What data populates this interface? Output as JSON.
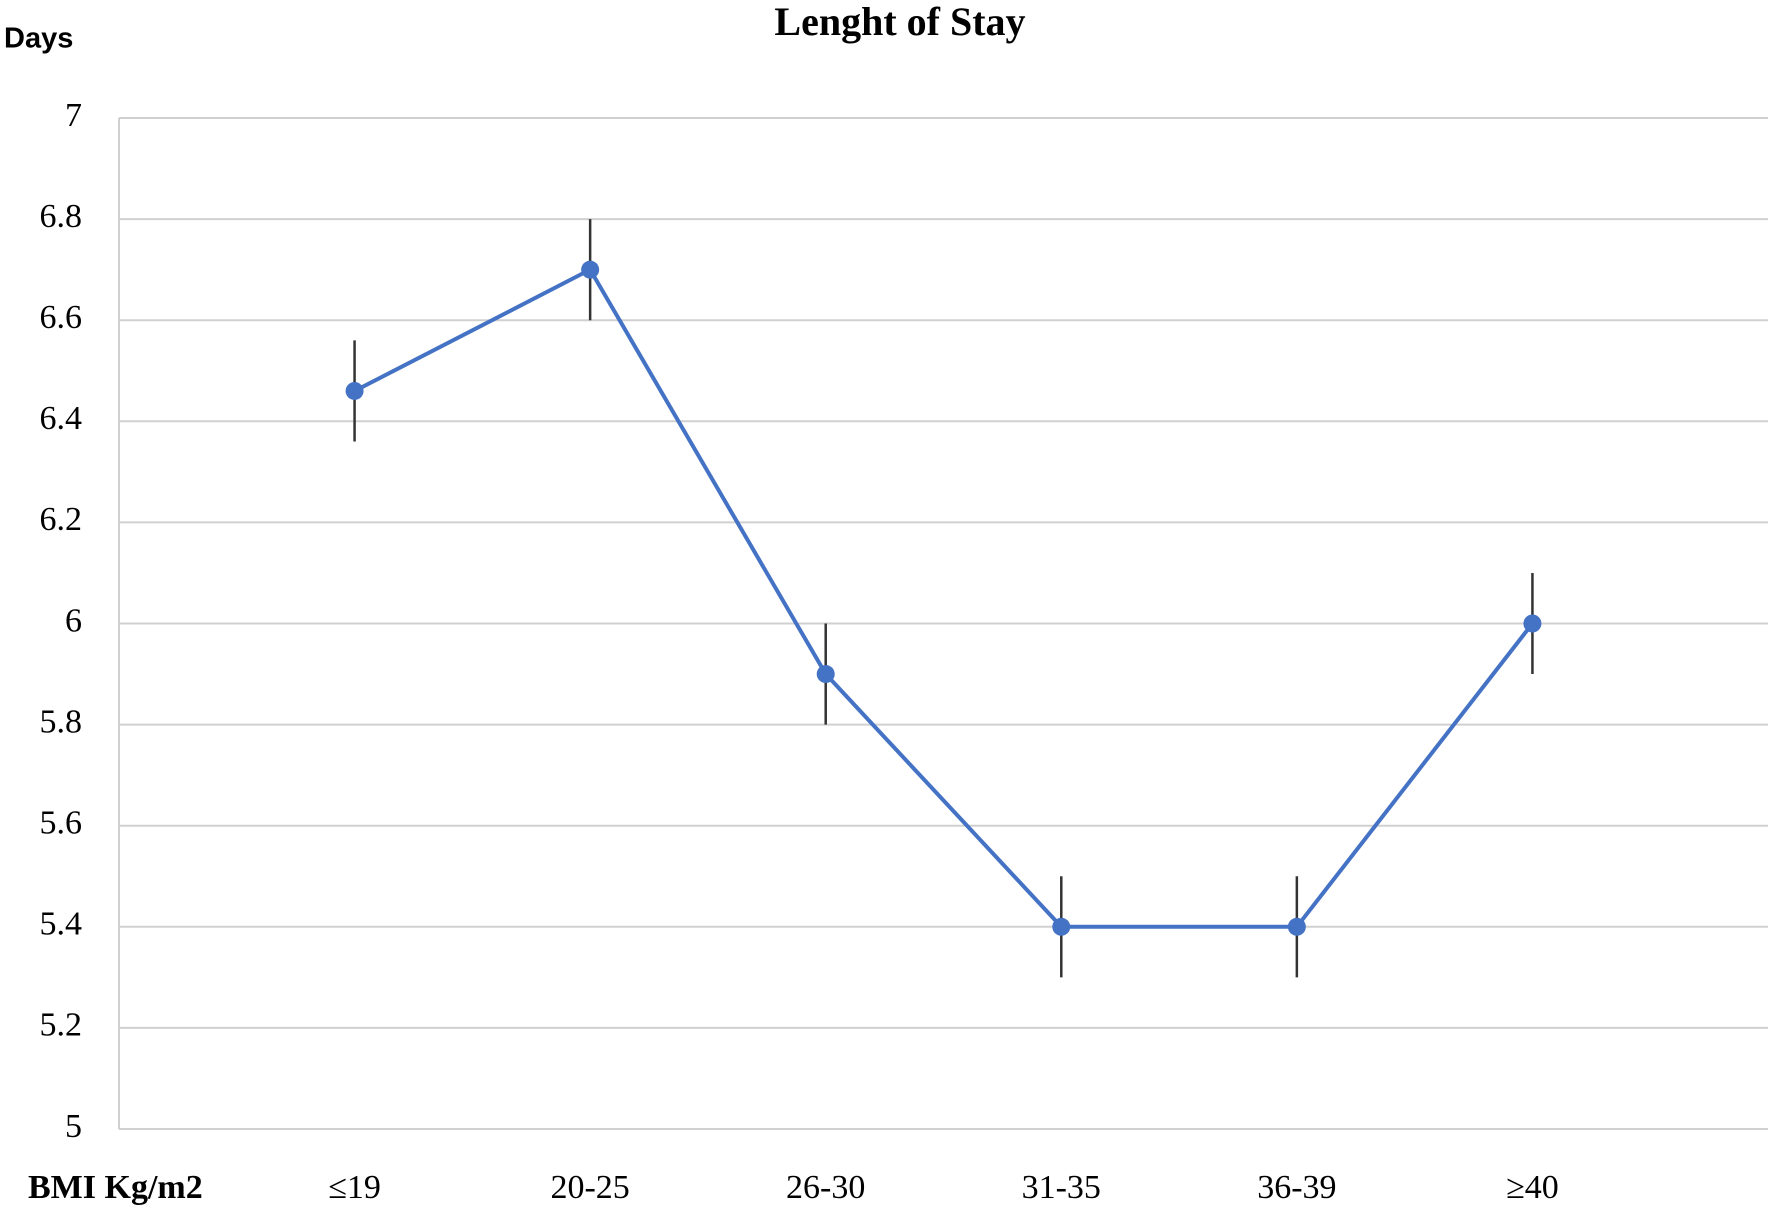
{
  "chart_data": {
    "type": "line",
    "title": "Lenght of Stay",
    "y_label": "Days",
    "x_label": "BMI Kg/m2",
    "categories": [
      "≤19",
      "20-25",
      "26-30",
      "31-35",
      "36-39",
      "≥40"
    ],
    "values": [
      6.46,
      6.7,
      5.9,
      5.4,
      5.4,
      6.0
    ],
    "errors": [
      0.1,
      0.1,
      0.1,
      0.1,
      0.1,
      0.1
    ],
    "color": "#4472c4",
    "error_color": "#333333",
    "ylim": [
      5,
      7
    ],
    "yticks": [
      5,
      5.2,
      5.4,
      5.6,
      5.8,
      6,
      6.2,
      6.4,
      6.6,
      6.8,
      7
    ],
    "grid": true
  }
}
